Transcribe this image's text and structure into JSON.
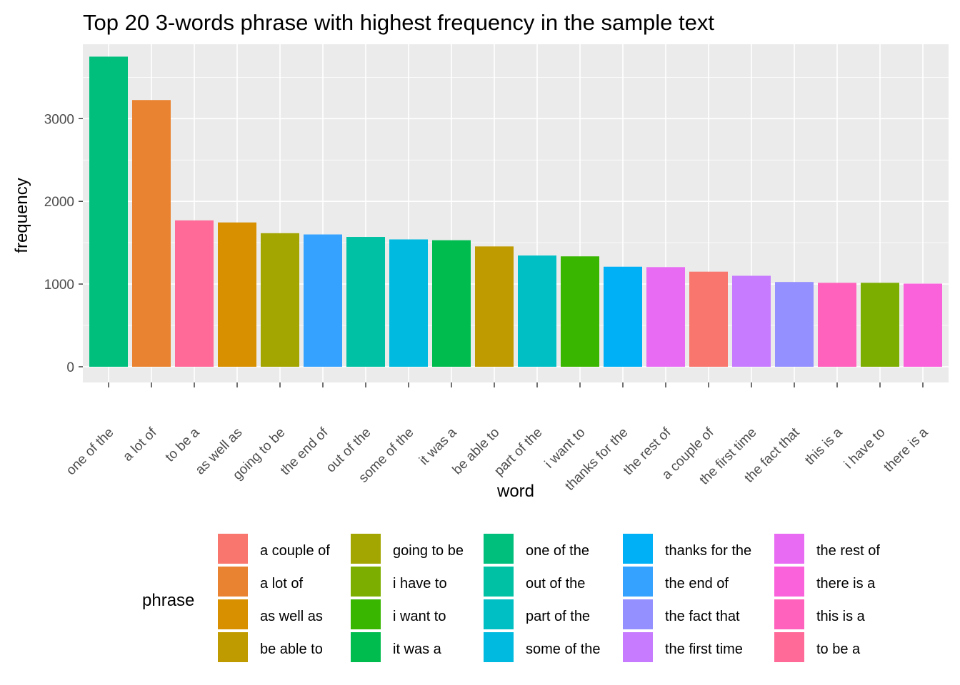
{
  "chart_data": {
    "type": "bar",
    "title": "Top 20 3-words phrase with highest frequency in the sample text",
    "xlabel": "word",
    "ylabel": "frequency",
    "ylim": [
      -190,
      3900
    ],
    "yticks": [
      0,
      1000,
      2000,
      3000
    ],
    "grid": true,
    "legend_title": "phrase",
    "legend_position": "bottom",
    "categories": [
      "one of the",
      "a lot of",
      "to be a",
      "as well as",
      "going to be",
      "the end of",
      "out of the",
      "some of the",
      "it was a",
      "be able to",
      "part of the",
      "i want to",
      "thanks for the",
      "the rest of",
      "a couple of",
      "the first time",
      "the fact that",
      "this is a",
      "i have to",
      "there is a"
    ],
    "values": [
      3750,
      3225,
      1770,
      1745,
      1615,
      1600,
      1570,
      1540,
      1530,
      1455,
      1345,
      1335,
      1210,
      1205,
      1150,
      1100,
      1025,
      1015,
      1015,
      1005
    ],
    "legend": [
      {
        "label": "a couple of",
        "color": "#F8766D"
      },
      {
        "label": "a lot of",
        "color": "#EA8331"
      },
      {
        "label": "as well as",
        "color": "#D89000"
      },
      {
        "label": "be able to",
        "color": "#C09B00"
      },
      {
        "label": "going to be",
        "color": "#A3A500"
      },
      {
        "label": "i have to",
        "color": "#7CAE00"
      },
      {
        "label": "i want to",
        "color": "#39B600"
      },
      {
        "label": "it was a",
        "color": "#00BB4E"
      },
      {
        "label": "one of the",
        "color": "#00BF7D"
      },
      {
        "label": "out of the",
        "color": "#00C1A3"
      },
      {
        "label": "part of the",
        "color": "#00BFC4"
      },
      {
        "label": "some of the",
        "color": "#00BAE0"
      },
      {
        "label": "thanks for the",
        "color": "#00B0F6"
      },
      {
        "label": "the end of",
        "color": "#35A2FF"
      },
      {
        "label": "the fact that",
        "color": "#9590FF"
      },
      {
        "label": "the first time",
        "color": "#C77CFF"
      },
      {
        "label": "the rest of",
        "color": "#E76BF3"
      },
      {
        "label": "there is a",
        "color": "#FA62DB"
      },
      {
        "label": "this is a",
        "color": "#FF62BC"
      },
      {
        "label": "to be a",
        "color": "#FF6A98"
      }
    ],
    "colors": {
      "panel_background": "#EBEBEB",
      "grid_major": "#FFFFFF",
      "tick_text": "#4D4D4D",
      "tick_mark": "#333333"
    }
  }
}
